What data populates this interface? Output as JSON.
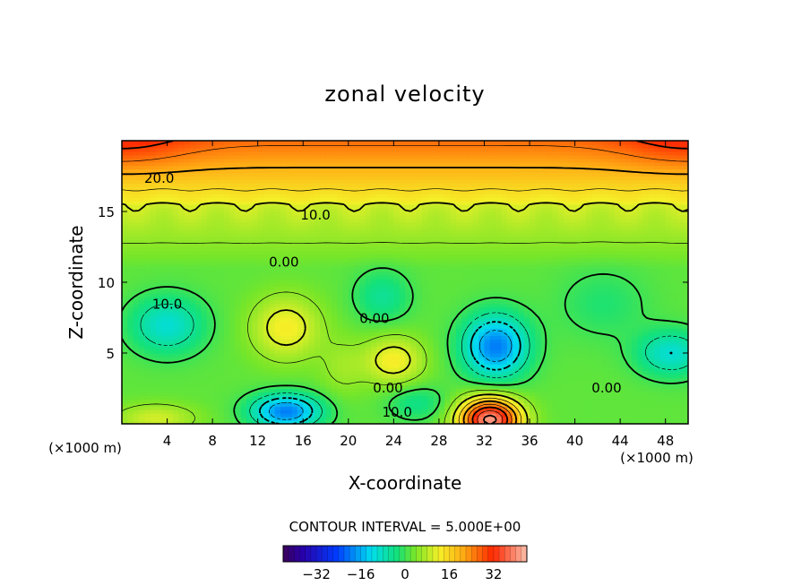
{
  "chart_data": {
    "type": "heatmap",
    "title": "zonal velocity",
    "xlabel": "X-coordinate",
    "ylabel": "Z-coordinate",
    "x_unit_left": "(×1000 m)",
    "x_unit_right": "(×1000 m)",
    "xlim": [
      0,
      50
    ],
    "ylim": [
      0,
      20
    ],
    "x_ticks": [
      4,
      8,
      12,
      16,
      20,
      24,
      28,
      32,
      36,
      40,
      44,
      48
    ],
    "y_ticks": [
      5,
      10,
      15
    ],
    "contour_interval_text": "CONTOUR INTERVAL = 5.000E+00",
    "contour_labels": [
      {
        "text": "20.0",
        "x": 3.3,
        "y": 17.4
      },
      {
        "text": "10.0",
        "x": 17.1,
        "y": 14.8
      },
      {
        "text": "0.00",
        "x": 14.3,
        "y": 11.5
      },
      {
        "text": "10.0",
        "x": 4.0,
        "y": 8.5
      },
      {
        "text": "0.00",
        "x": 22.3,
        "y": 7.5
      },
      {
        "text": "0.00",
        "x": 23.5,
        "y": 2.6
      },
      {
        "text": "10.0",
        "x": 24.3,
        "y": 0.9
      },
      {
        "text": "0.00",
        "x": 42.8,
        "y": 2.6
      }
    ],
    "colorbar": {
      "min": -44,
      "max": 44,
      "ticks": [
        -32,
        -16,
        0,
        16,
        32
      ],
      "tick_labels": [
        "−32",
        "−16",
        "0",
        "16",
        "32"
      ]
    },
    "features": [
      {
        "kind": "max",
        "x": 14.5,
        "y": 6.8,
        "value": 10
      },
      {
        "kind": "min",
        "x": 4.0,
        "y": 7.0,
        "value": -10
      },
      {
        "kind": "max",
        "x": 24.0,
        "y": 4.5,
        "value": 10
      },
      {
        "kind": "min",
        "x": 23.0,
        "y": 9.0,
        "value": -5
      },
      {
        "kind": "min",
        "x": 33.0,
        "y": 5.5,
        "value": -20
      },
      {
        "kind": "min",
        "x": 14.5,
        "y": 0.9,
        "value": -20
      },
      {
        "kind": "max",
        "x": 32.5,
        "y": 0.5,
        "value": 35
      },
      {
        "kind": "min",
        "x": 48.5,
        "y": 5.0,
        "value": -10
      },
      {
        "kind": "max",
        "x": 3.0,
        "y": 0.4,
        "value": 8
      }
    ]
  }
}
